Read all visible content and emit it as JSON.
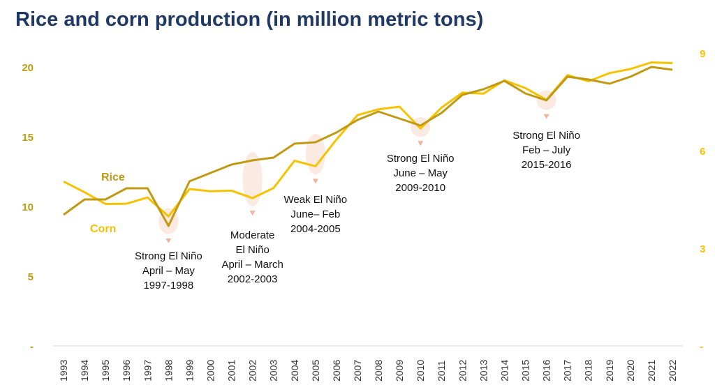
{
  "title": "Rice and corn production (in million metric tons)",
  "colors": {
    "rice": "#bf9a12",
    "corn": "#f7c200",
    "left_axis": "#bf9a12",
    "right_axis": "#f7c200",
    "title": "#1f3864",
    "highlight": "#f8d9c8"
  },
  "chart_data": {
    "type": "line",
    "title": "Rice and corn production (in million metric tons)",
    "xlabel": "",
    "ylabel": "",
    "x": [
      "1993",
      "1994",
      "1995",
      "1996",
      "1997",
      "1998",
      "1999",
      "2000",
      "2001",
      "2002",
      "2003",
      "2004",
      "2005",
      "2006",
      "2007",
      "2008",
      "2009",
      "2010",
      "2011",
      "2012",
      "2013",
      "2014",
      "2015",
      "2016",
      "2017",
      "2018",
      "2019",
      "2020",
      "2021",
      "2022"
    ],
    "y_left": {
      "ylim": [
        0,
        20
      ],
      "ticks": [
        "-",
        "5",
        "10",
        "15",
        "20"
      ],
      "tick_values": [
        0,
        5,
        10,
        15,
        20
      ]
    },
    "y_right": {
      "ylim": [
        0,
        9
      ],
      "ticks": [
        "-",
        "3",
        "6",
        "9"
      ],
      "tick_values": [
        0,
        3,
        6,
        9
      ]
    },
    "legend": "inline labels",
    "grid": false,
    "series": [
      {
        "name": "Rice",
        "axis": "left",
        "values": [
          9.4,
          10.5,
          10.5,
          11.3,
          11.3,
          8.6,
          11.8,
          12.4,
          13.0,
          13.3,
          13.5,
          14.5,
          14.6,
          15.3,
          16.2,
          16.8,
          16.3,
          15.8,
          16.7,
          18.0,
          18.4,
          19.0,
          18.1,
          17.6,
          19.3,
          19.1,
          18.8,
          19.3,
          20.0,
          19.8
        ]
      },
      {
        "name": "Corn",
        "axis": "right",
        "values": [
          5.05,
          4.72,
          4.36,
          4.37,
          4.56,
          3.98,
          4.82,
          4.75,
          4.77,
          4.54,
          4.85,
          5.69,
          5.52,
          6.34,
          7.09,
          7.27,
          7.35,
          6.68,
          7.32,
          7.78,
          7.75,
          8.16,
          7.92,
          7.56,
          8.32,
          8.13,
          8.38,
          8.51,
          8.71,
          8.69
        ]
      }
    ],
    "annotations": [
      {
        "year": "1998",
        "lines": [
          "Strong El Niño",
          "April – May",
          "1997-1998"
        ]
      },
      {
        "year": "2002",
        "lines": [
          "Moderate",
          "El Niño",
          "April – March",
          "2002-2003"
        ]
      },
      {
        "year": "2005",
        "lines": [
          "Weak El Niño",
          "June– Feb",
          "2004-2005"
        ]
      },
      {
        "year": "2010",
        "lines": [
          "Strong El Niño",
          "June – May",
          "2009-2010"
        ]
      },
      {
        "year": "2016",
        "lines": [
          "Strong El Niño",
          "Feb – July",
          "2015-2016"
        ]
      }
    ]
  }
}
